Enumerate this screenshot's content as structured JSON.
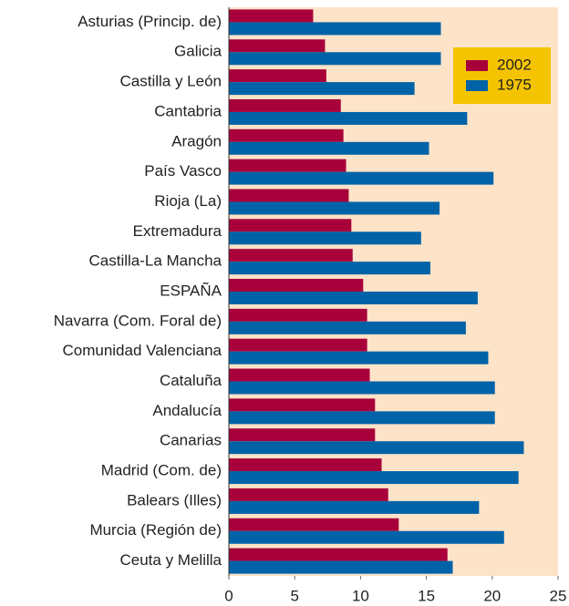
{
  "chart_data": {
    "type": "bar",
    "orientation": "horizontal",
    "categories": [
      "Asturias (Princip. de)",
      "Galicia",
      "Castilla y León",
      "Cantabria",
      "Aragón",
      "País Vasco",
      "Rioja (La)",
      "Extremadura",
      "Castilla-La Mancha",
      "ESPAÑA",
      "Navarra (Com. Foral de)",
      "Comunidad Valenciana",
      "Cataluña",
      "Andalucía",
      "Canarias",
      "Madrid (Com. de)",
      "Balears (Illes)",
      "Murcia (Región de)",
      "Ceuta y Melilla"
    ],
    "series": [
      {
        "name": "2002",
        "color": "#a8003a",
        "values": [
          6.4,
          7.3,
          7.4,
          8.5,
          8.7,
          8.9,
          9.1,
          9.3,
          9.4,
          10.2,
          10.5,
          10.5,
          10.7,
          11.1,
          11.1,
          11.6,
          12.1,
          12.9,
          16.6
        ]
      },
      {
        "name": "1975",
        "color": "#0063a8",
        "values": [
          16.1,
          16.1,
          14.1,
          18.1,
          15.2,
          20.1,
          16.0,
          14.6,
          15.3,
          18.9,
          18.0,
          19.7,
          20.2,
          20.2,
          22.4,
          22.0,
          19.0,
          20.9,
          17.0
        ]
      }
    ],
    "xlim": [
      0,
      25
    ],
    "xticks": [
      0,
      5,
      10,
      15,
      20,
      25
    ],
    "grid": false,
    "legend": "upper right"
  }
}
